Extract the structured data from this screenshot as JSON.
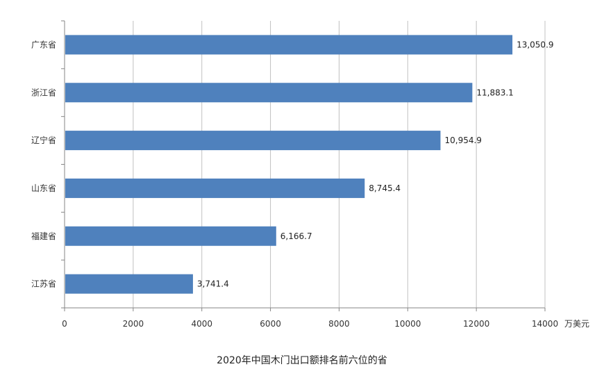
{
  "chart_data": {
    "type": "bar",
    "orientation": "horizontal",
    "title": "2020年中国木门出口额排名前六位的省",
    "unit": "万美元",
    "categories": [
      "广东省",
      "浙江省",
      "辽宁省",
      "山东省",
      "福建省",
      "江苏省"
    ],
    "values": [
      13050.9,
      11883.1,
      10954.9,
      8745.4,
      6166.7,
      3741.4
    ],
    "value_labels": [
      "13,050.9",
      "11,883.1",
      "10,954.9",
      "8,745.4",
      "6,166.7",
      "3,741.4"
    ],
    "xlim": [
      0,
      14000
    ],
    "xticks": [
      0,
      2000,
      4000,
      6000,
      8000,
      10000,
      12000,
      14000
    ],
    "grid": "vertical",
    "legend": "none",
    "bar_color": "#4f81bd",
    "grid_color": "#c0c0c0",
    "axis_color": "#868686"
  }
}
